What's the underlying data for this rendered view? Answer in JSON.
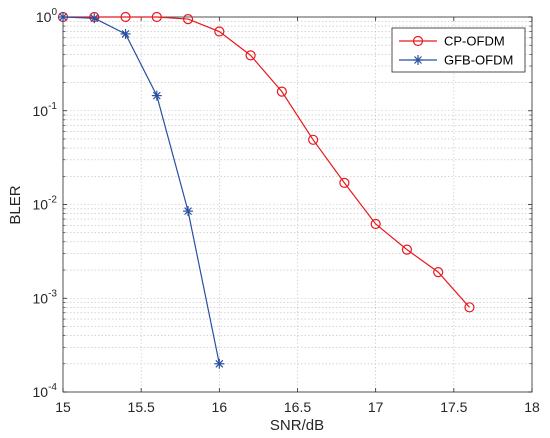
{
  "chart_data": {
    "type": "line",
    "xlabel": "SNR/dB",
    "ylabel": "BLER",
    "xlim": [
      15,
      18
    ],
    "ylim": [
      0.0001,
      1
    ],
    "yscale": "log",
    "grid": true,
    "minor_grid": true,
    "legend_position": "top-right",
    "x_ticks": [
      "15",
      "15.5",
      "16",
      "16.5",
      "17",
      "17.5",
      "18"
    ],
    "x_tick_values": [
      15,
      15.5,
      16,
      16.5,
      17,
      17.5,
      18
    ],
    "y_ticks": [
      {
        "value": 1,
        "base": "10",
        "exp": "0"
      },
      {
        "value": 0.1,
        "base": "10",
        "exp": "-1"
      },
      {
        "value": 0.01,
        "base": "10",
        "exp": "-2"
      },
      {
        "value": 0.001,
        "base": "10",
        "exp": "-3"
      },
      {
        "value": 0.0001,
        "base": "10",
        "exp": "-4"
      }
    ],
    "series": [
      {
        "name": "CP-OFDM",
        "color": "#e8191e",
        "marker": "circle",
        "x": [
          15,
          15.2,
          15.4,
          15.6,
          15.8,
          16,
          16.2,
          16.4,
          16.6,
          16.8,
          17,
          17.2,
          17.4,
          17.6
        ],
        "values": [
          1,
          1,
          1,
          1,
          0.95,
          0.7,
          0.39,
          0.16,
          0.049,
          0.017,
          0.0062,
          0.0033,
          0.0019,
          0.0008
        ]
      },
      {
        "name": "GFB-OFDM",
        "color": "#2850a0",
        "marker": "asterisk",
        "x": [
          15,
          15.2,
          15.4,
          15.6,
          15.8,
          16
        ],
        "values": [
          1,
          0.97,
          0.66,
          0.145,
          0.0085,
          0.0002
        ]
      }
    ]
  }
}
